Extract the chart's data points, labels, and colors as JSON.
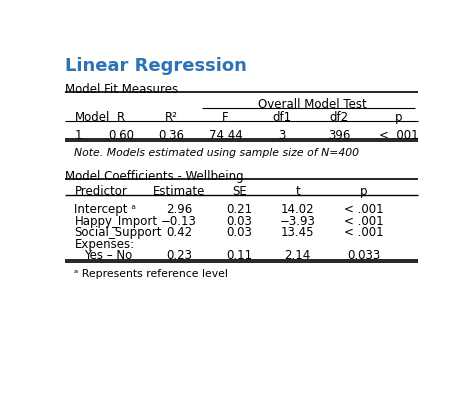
{
  "title": "Linear Regression",
  "title_color": "#2E74B5",
  "background_color": "#FFFFFF",
  "table1_label": "Model Fit Measures",
  "table1_span_label": "Overall Model Test",
  "table1_col_headers": [
    "Model",
    "R",
    "R²",
    "F",
    "df1",
    "df2",
    "p"
  ],
  "table1_row": [
    "1",
    "0.60",
    "0.36",
    "74.44",
    "3",
    "396",
    "< .001"
  ],
  "table1_note": "Note. Models estimated using sample size of N=400",
  "table2_label": "Model Coefficients - Wellbeing",
  "table2_col_headers": [
    "Predictor",
    "Estimate",
    "SE",
    "t",
    "p"
  ],
  "table2_rows": [
    [
      "Intercept ᵃ",
      "2.96",
      "0.21",
      "14.02",
      "< .001"
    ],
    [
      "Happy_Import",
      "−0.13",
      "0.03",
      "−3.93",
      "< .001"
    ],
    [
      "Social_Support",
      "0.42",
      "0.03",
      "13.45",
      "< .001"
    ],
    [
      "Expenses:",
      "",
      "",
      "",
      ""
    ],
    [
      "Yes – No",
      "0.23",
      "0.11",
      "2.14",
      "0.033"
    ]
  ],
  "table2_footnote": "ᵃ Represents reference level",
  "font_family": "DejaVu Sans",
  "header_fontsize": 8.5,
  "data_fontsize": 8.5,
  "label_fontsize": 8.5,
  "title_fontsize": 13
}
